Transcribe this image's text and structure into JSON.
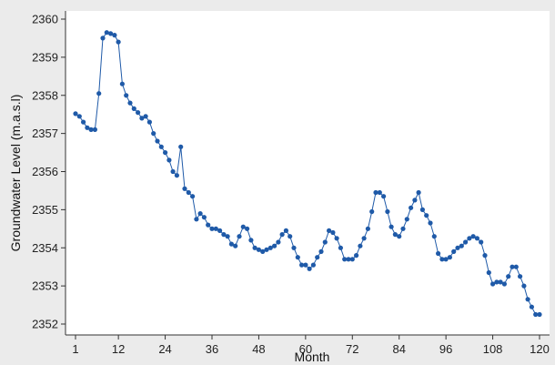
{
  "chart_data": {
    "type": "line",
    "title": "",
    "xlabel": "Month",
    "ylabel": "Groundwater Level (m.a.s.l)",
    "xlim": [
      1,
      120
    ],
    "ylim": [
      2352,
      2360
    ],
    "x_ticks": [
      1,
      12,
      24,
      36,
      48,
      60,
      72,
      84,
      96,
      108,
      120
    ],
    "y_ticks": [
      2352,
      2353,
      2354,
      2355,
      2356,
      2357,
      2358,
      2359,
      2360
    ],
    "grid": false,
    "legend": "none",
    "marker": "circle",
    "color": "#1f5aa8",
    "series": [
      {
        "x": [
          1,
          2,
          3,
          4,
          5,
          6,
          7,
          8,
          9,
          10,
          11,
          12,
          13,
          14,
          15,
          16,
          17,
          18,
          19,
          20,
          21,
          22,
          23,
          24,
          25,
          26,
          27,
          28,
          29,
          30,
          31,
          32,
          33,
          34,
          35,
          36,
          37,
          38,
          39,
          40,
          41,
          42,
          43,
          44,
          45,
          46,
          47,
          48,
          49,
          50,
          51,
          52,
          53,
          54,
          55,
          56,
          57,
          58,
          59,
          60,
          61,
          62,
          63,
          64,
          65,
          66,
          67,
          68,
          69,
          70,
          71,
          72,
          73,
          74,
          75,
          76,
          77,
          78,
          79,
          80,
          81,
          82,
          83,
          84,
          85,
          86,
          87,
          88,
          89,
          90,
          91,
          92,
          93,
          94,
          95,
          96,
          97,
          98,
          99,
          100,
          101,
          102,
          103,
          104,
          105,
          106,
          107,
          108,
          109,
          110,
          111,
          112,
          113,
          114,
          115,
          116,
          117,
          118,
          119,
          120
        ],
        "values": [
          2357.52,
          2357.45,
          2357.3,
          2357.15,
          2357.1,
          2357.1,
          2358.05,
          2359.5,
          2359.65,
          2359.62,
          2359.58,
          2359.4,
          2358.3,
          2358.0,
          2357.8,
          2357.65,
          2357.55,
          2357.4,
          2357.45,
          2357.3,
          2357.0,
          2356.8,
          2356.65,
          2356.5,
          2356.3,
          2356.0,
          2355.9,
          2356.65,
          2355.55,
          2355.45,
          2355.35,
          2354.75,
          2354.9,
          2354.8,
          2354.6,
          2354.5,
          2354.5,
          2354.45,
          2354.35,
          2354.3,
          2354.1,
          2354.05,
          2354.3,
          2354.55,
          2354.5,
          2354.2,
          2354.0,
          2353.95,
          2353.9,
          2353.95,
          2354.0,
          2354.05,
          2354.15,
          2354.35,
          2354.45,
          2354.3,
          2354.0,
          2353.75,
          2353.55,
          2353.55,
          2353.45,
          2353.55,
          2353.75,
          2353.9,
          2354.15,
          2354.45,
          2354.4,
          2354.25,
          2354.0,
          2353.7,
          2353.7,
          2353.7,
          2353.8,
          2354.05,
          2354.25,
          2354.5,
          2354.95,
          2355.45,
          2355.45,
          2355.35,
          2354.95,
          2354.55,
          2354.35,
          2354.3,
          2354.5,
          2354.75,
          2355.05,
          2355.25,
          2355.45,
          2355.0,
          2354.85,
          2354.65,
          2354.3,
          2353.85,
          2353.7,
          2353.7,
          2353.75,
          2353.9,
          2354.0,
          2354.05,
          2354.15,
          2354.25,
          2354.3,
          2354.25,
          2354.15,
          2353.8,
          2353.35,
          2353.05,
          2353.1,
          2353.1,
          2353.05,
          2353.25,
          2353.5,
          2353.5,
          2353.25,
          2353.0,
          2352.65,
          2352.45,
          2352.25,
          2352.25
        ]
      }
    ]
  }
}
